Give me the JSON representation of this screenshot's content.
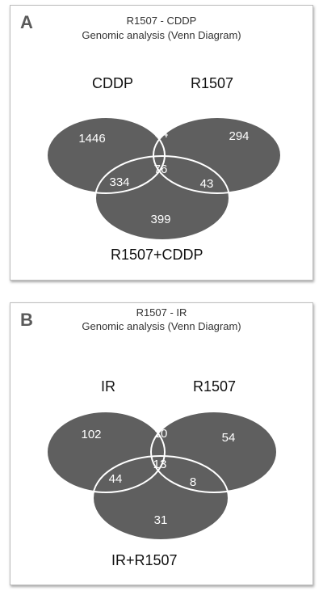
{
  "panel_a": {
    "letter": "A",
    "title": "R1507 - CDDP",
    "subtitle": "Genomic analysis (Venn Diagram)",
    "set_left": "CDDP",
    "set_right": "R1507",
    "set_bottom": "R1507+CDDP",
    "regions": {
      "left_only": "1446",
      "left_right": "34",
      "right_only": "294",
      "left_bottom": "334",
      "all_three": "76",
      "right_bottom": "43",
      "bottom_only": "399"
    }
  },
  "panel_b": {
    "letter": "B",
    "title": "R1507 - IR",
    "subtitle": "Genomic analysis (Venn Diagram)",
    "set_left": "IR",
    "set_right": "R1507",
    "set_bottom": "IR+R1507",
    "regions": {
      "left_only": "102",
      "left_right": "10",
      "right_only": "54",
      "left_bottom": "44",
      "all_three": "13",
      "right_bottom": "8",
      "bottom_only": "31"
    }
  },
  "colors": {
    "ellipse_fill": "#5f5f5f",
    "outline": "#ffffff"
  }
}
